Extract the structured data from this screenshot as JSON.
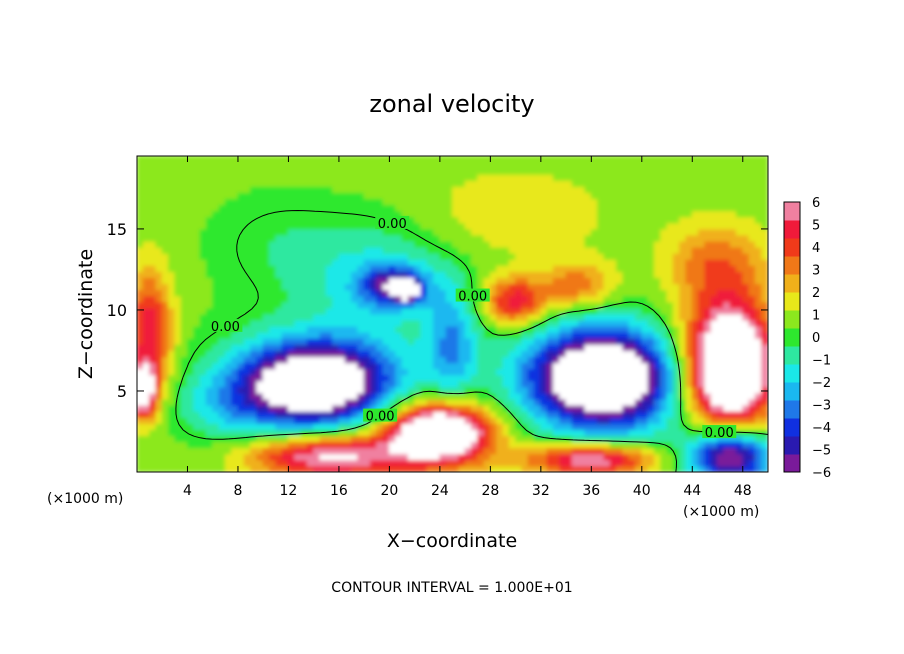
{
  "chart_data": {
    "type": "heatmap",
    "title": "zonal velocity",
    "xlabel": "X−coordinate",
    "ylabel": "Z−coordinate",
    "x_unit_left": "(×1000 m)",
    "x_unit_right": "(×1000 m)",
    "xlim": [
      0,
      50
    ],
    "ylim": [
      0,
      19.5
    ],
    "x_ticks": [
      4,
      8,
      12,
      16,
      20,
      24,
      28,
      32,
      36,
      40,
      44,
      48
    ],
    "y_ticks": [
      5,
      10,
      15
    ],
    "colorbar": {
      "ticks": [
        6,
        5,
        4,
        3,
        2,
        1,
        0,
        -1,
        -2,
        -3,
        -4,
        -5,
        -6
      ],
      "tick_labels": [
        "6",
        "5",
        "4",
        "3",
        "2",
        "1",
        "0",
        "−1",
        "−2",
        "−3",
        "−4",
        "−5",
        "−6"
      ],
      "colors": [
        "#7a1a9a",
        "#2a1ab0",
        "#1030e0",
        "#1f78e8",
        "#1ab8f0",
        "#1ae8e8",
        "#2ee8a0",
        "#2ee82e",
        "#8ce81e",
        "#e8e81a",
        "#f0b01a",
        "#f07818",
        "#f03a1a",
        "#f01a3a",
        "#f080a0"
      ]
    },
    "contour_labels": [
      "0.00",
      "0.00",
      "0.00",
      "0.00",
      "0.00"
    ],
    "footer": "CONTOUR INTERVAL = 1.000E+01",
    "background_value": 0.6,
    "features": [
      {
        "x": 14,
        "y": 5.5,
        "rx": 5.5,
        "ry": 2.3,
        "value": -7
      },
      {
        "x": 14.5,
        "y": 5.5,
        "rx": 7.5,
        "ry": 3.3,
        "value": -3.5
      },
      {
        "x": 37,
        "y": 5.8,
        "rx": 5.5,
        "ry": 2.8,
        "value": -7
      },
      {
        "x": 37,
        "y": 5.8,
        "rx": 7.5,
        "ry": 3.8,
        "value": -3.5
      },
      {
        "x": 20.5,
        "y": 11.5,
        "rx": 2.5,
        "ry": 1.2,
        "value": -5
      },
      {
        "x": 21.5,
        "y": 11.2,
        "rx": 0.8,
        "ry": 0.5,
        "value": -7
      },
      {
        "x": 19,
        "y": 12,
        "rx": 6,
        "ry": 3.5,
        "value": -2.2
      },
      {
        "x": 25,
        "y": 8,
        "rx": 2,
        "ry": 3.5,
        "value": -3
      },
      {
        "x": 24,
        "y": 2.5,
        "rx": 3.5,
        "ry": 1.5,
        "value": 7
      },
      {
        "x": 23.5,
        "y": 2.2,
        "rx": 5.5,
        "ry": 2.5,
        "value": 3.5
      },
      {
        "x": 15,
        "y": 1,
        "rx": 6,
        "ry": 1.3,
        "value": 6
      },
      {
        "x": 36,
        "y": 0.8,
        "rx": 5,
        "ry": 1.0,
        "value": 6
      },
      {
        "x": 47,
        "y": 6.5,
        "rx": 3,
        "ry": 3.5,
        "value": 7
      },
      {
        "x": 46.5,
        "y": 6.5,
        "rx": 4.5,
        "ry": 4.5,
        "value": 4.0
      },
      {
        "x": 1,
        "y": 8.5,
        "rx": 1.8,
        "ry": 4,
        "value": 4.5
      },
      {
        "x": 0.5,
        "y": 5,
        "rx": 1.0,
        "ry": 1.5,
        "value": 7
      },
      {
        "x": 30,
        "y": 10.5,
        "rx": 2.5,
        "ry": 1.5,
        "value": 4.5
      },
      {
        "x": 35,
        "y": 11.5,
        "rx": 3,
        "ry": 1.5,
        "value": 3
      },
      {
        "x": 46,
        "y": 13,
        "rx": 4,
        "ry": 2.5,
        "value": 2.5
      },
      {
        "x": 47,
        "y": 1,
        "rx": 3,
        "ry": 1.5,
        "value": -5
      },
      {
        "x": 47,
        "y": 1,
        "rx": 4,
        "ry": 2.2,
        "value": -3
      },
      {
        "x": 11,
        "y": 14,
        "rx": 5,
        "ry": 3,
        "value": -0.8
      },
      {
        "x": 7,
        "y": 4,
        "rx": 4,
        "ry": 2,
        "value": -1.5
      },
      {
        "x": 30,
        "y": 16,
        "rx": 8,
        "ry": 3,
        "value": 1.2
      }
    ]
  }
}
